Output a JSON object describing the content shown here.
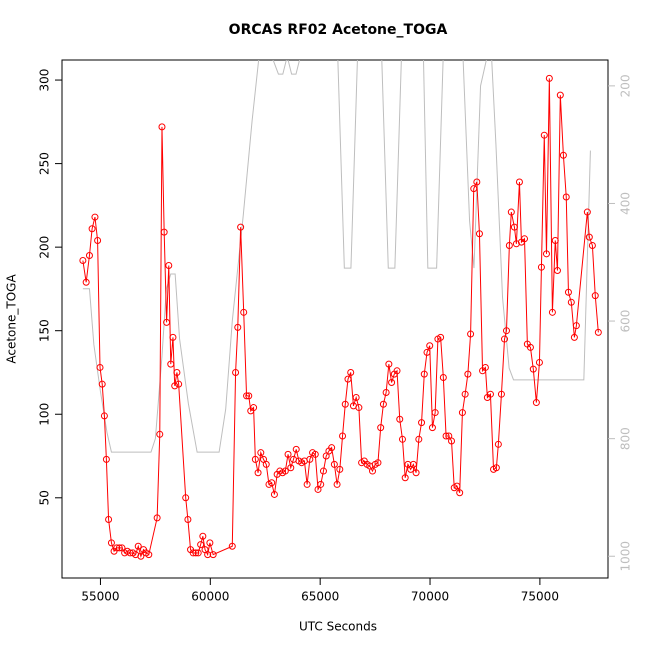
{
  "chart_data": {
    "type": "line",
    "title": "ORCAS RF02 Acetone_TOGA",
    "x_label": "UTC Seconds",
    "y_label": "Acetone_TOGA",
    "xlim": [
      53250,
      78100
    ],
    "xticks": [
      55000,
      60000,
      65000,
      70000,
      75000
    ],
    "ylim": [
      2,
      312
    ],
    "yticks": [
      50,
      100,
      150,
      200,
      250,
      300
    ],
    "y2lim": [
      1037,
      156
    ],
    "y2ticks": [
      200,
      400,
      600,
      800,
      1000
    ],
    "series": [
      {
        "color": "#ff0000",
        "markers": true,
        "x": [
          54200,
          54350,
          54500,
          54620,
          54750,
          54870,
          54980,
          55080,
          55180,
          55270,
          55370,
          55500,
          55620,
          55740,
          55860,
          55980,
          56100,
          56220,
          56350,
          56480,
          56600,
          56720,
          56840,
          56960,
          57080,
          57200,
          57580,
          57700,
          57800,
          57900,
          58010,
          58110,
          58200,
          58300,
          58380,
          58480,
          58560,
          58880,
          58980,
          59100,
          59220,
          59340,
          59450,
          59560,
          59660,
          59760,
          59880,
          59980,
          60130,
          61000,
          61150,
          61250,
          61380,
          61520,
          61650,
          61750,
          61840,
          61970,
          62050,
          62174,
          62298,
          62422,
          62546,
          62670,
          62794,
          62918,
          63042,
          63166,
          63290,
          63414,
          63538,
          63662,
          63786,
          63910,
          64034,
          64158,
          64282,
          64406,
          64530,
          64654,
          64778,
          64902,
          65026,
          65150,
          65274,
          65398,
          65522,
          65646,
          65770,
          65894,
          66018,
          66142,
          66266,
          66390,
          66514,
          66638,
          66762,
          66886,
          67010,
          67134,
          67258,
          67382,
          67506,
          67630,
          67754,
          67878,
          68002,
          68126,
          68250,
          68374,
          68498,
          68622,
          68746,
          68870,
          68994,
          69118,
          69242,
          69366,
          69490,
          69614,
          69738,
          69862,
          69986,
          70110,
          70234,
          70358,
          70482,
          70606,
          70730,
          70854,
          70978,
          71102,
          71226,
          71350,
          71474,
          71598,
          71722,
          71846,
          71990,
          72130,
          72250,
          72390,
          72520,
          72610,
          72750,
          72890,
          73020,
          73110,
          73250,
          73390,
          73480,
          73610,
          73700,
          73840,
          73930,
          74070,
          74160,
          74300,
          74430,
          74570,
          74700,
          74840,
          74980,
          75070,
          75200,
          75300,
          75430,
          75570,
          75700,
          75800,
          75930,
          76070,
          76200,
          76300,
          76430,
          76570,
          76660,
          77160,
          77250,
          77390,
          77520,
          77660
        ],
        "values": [
          192,
          179,
          195,
          211,
          218,
          204,
          128,
          118,
          99,
          73,
          37,
          23,
          18,
          20,
          20,
          20,
          17,
          18,
          17,
          17,
          16,
          21,
          15,
          19,
          17,
          16,
          38,
          88,
          272,
          209,
          155,
          189,
          130,
          146,
          117,
          125,
          118,
          50,
          37,
          19,
          17,
          17,
          17,
          22,
          27,
          19,
          16,
          23,
          16,
          21,
          125,
          152,
          212,
          161,
          111,
          111,
          102,
          104,
          73,
          65,
          77,
          73,
          70,
          58,
          59,
          52,
          64,
          66,
          65,
          66,
          76,
          68,
          73,
          79,
          72,
          71,
          72,
          58,
          73,
          77,
          76,
          55,
          58,
          66,
          75,
          78,
          80,
          70,
          58,
          67,
          87,
          106,
          121,
          125,
          105,
          110,
          104,
          71,
          72,
          70,
          69,
          66,
          70,
          71,
          92,
          106,
          113,
          130,
          119,
          124,
          126,
          97,
          85,
          62,
          70,
          67,
          70,
          65,
          85,
          95,
          124,
          137,
          141,
          92,
          101,
          145,
          146,
          122,
          87,
          87,
          84,
          56,
          57,
          53,
          101,
          112,
          124,
          148,
          235,
          239,
          208,
          126,
          128,
          110,
          112,
          67,
          68,
          82,
          112,
          145,
          150,
          201,
          221,
          212,
          202,
          239,
          203,
          205,
          142,
          140,
          127,
          107,
          131,
          188,
          267,
          196,
          301,
          161,
          204,
          186,
          291,
          255,
          230,
          173,
          167,
          146,
          153,
          221,
          206,
          201,
          171,
          149
        ]
      },
      {
        "color": "#bebebe",
        "axis": "y2",
        "markers": false,
        "x": [
          54200,
          54500,
          54700,
          55000,
          55300,
          55500,
          57300,
          57500,
          57800,
          58000,
          58200,
          58400,
          58600,
          59000,
          59400,
          60400,
          60700,
          61000,
          61500,
          61900,
          62200,
          62400,
          62800,
          63100,
          63300,
          63500,
          63700,
          63900,
          64100,
          65800,
          66100,
          66400,
          66700,
          67800,
          68100,
          68400,
          68700,
          69700,
          69900,
          70300,
          70600,
          71500,
          71800,
          72000,
          72300,
          72600,
          72800,
          73000,
          73300,
          73600,
          73800,
          77000,
          77300
        ],
        "values": [
          545,
          545,
          640,
          720,
          790,
          823,
          823,
          800,
          660,
          545,
          520,
          520,
          630,
          740,
          823,
          823,
          750,
          600,
          420,
          260,
          156,
          150,
          150,
          180,
          180,
          150,
          180,
          180,
          150,
          150,
          510,
          510,
          150,
          150,
          510,
          510,
          150,
          150,
          510,
          510,
          150,
          150,
          430,
          510,
          200,
          150,
          150,
          300,
          560,
          680,
          700,
          700,
          310
        ]
      }
    ]
  }
}
